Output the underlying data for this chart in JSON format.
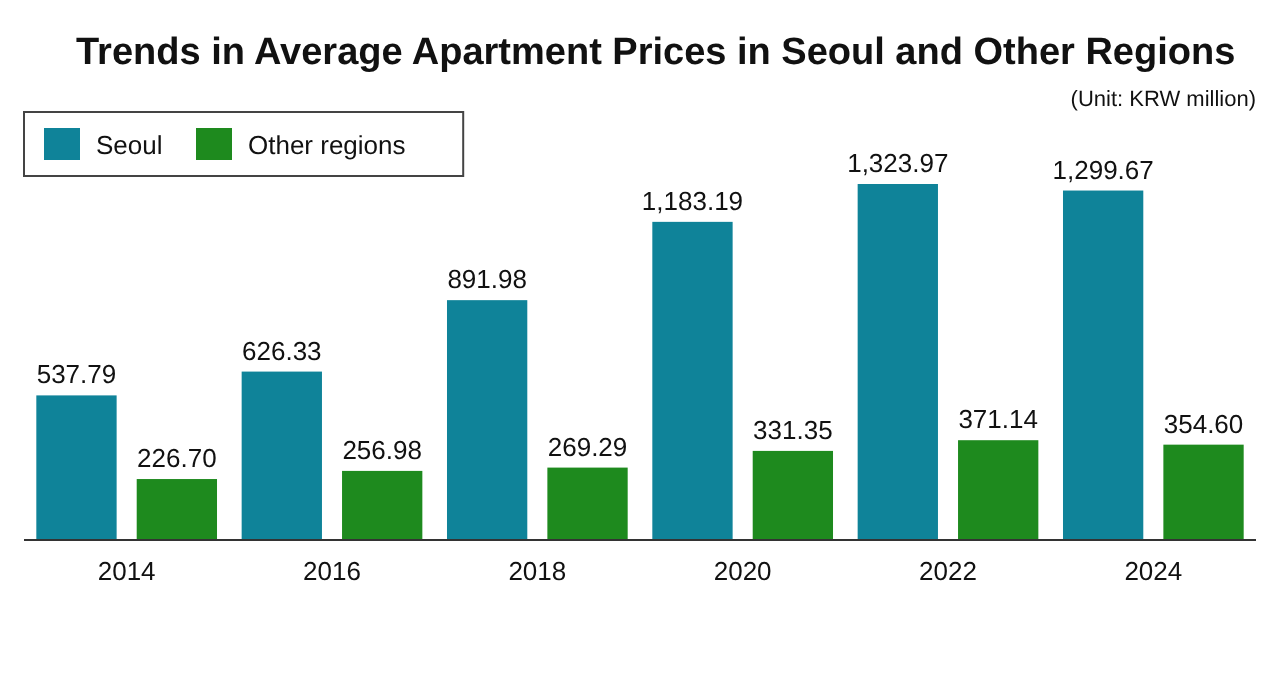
{
  "chart_data": {
    "type": "bar",
    "title": "Trends in Average Apartment Prices in Seoul and Other Regions",
    "subtitle": "(Unit: KRW million)",
    "categories": [
      "2014",
      "2016",
      "2018",
      "2020",
      "2022",
      "2024"
    ],
    "series": [
      {
        "name": "Seoul",
        "color": "#0f8399",
        "values": [
          537.79,
          626.33,
          891.98,
          1183.19,
          1323.97,
          1299.67
        ],
        "value_labels": [
          "537.79",
          "626.33",
          "891.98",
          "1,183.19",
          "1,323.97",
          "1,299.67"
        ]
      },
      {
        "name": "Other regions",
        "color": "#1e8a1e",
        "values": [
          226.7,
          256.98,
          269.29,
          331.35,
          371.14,
          354.6
        ],
        "value_labels": [
          "226.70",
          "256.98",
          "269.29",
          "331.35",
          "371.14",
          "354.60"
        ]
      }
    ],
    "legend": "top left"
  }
}
